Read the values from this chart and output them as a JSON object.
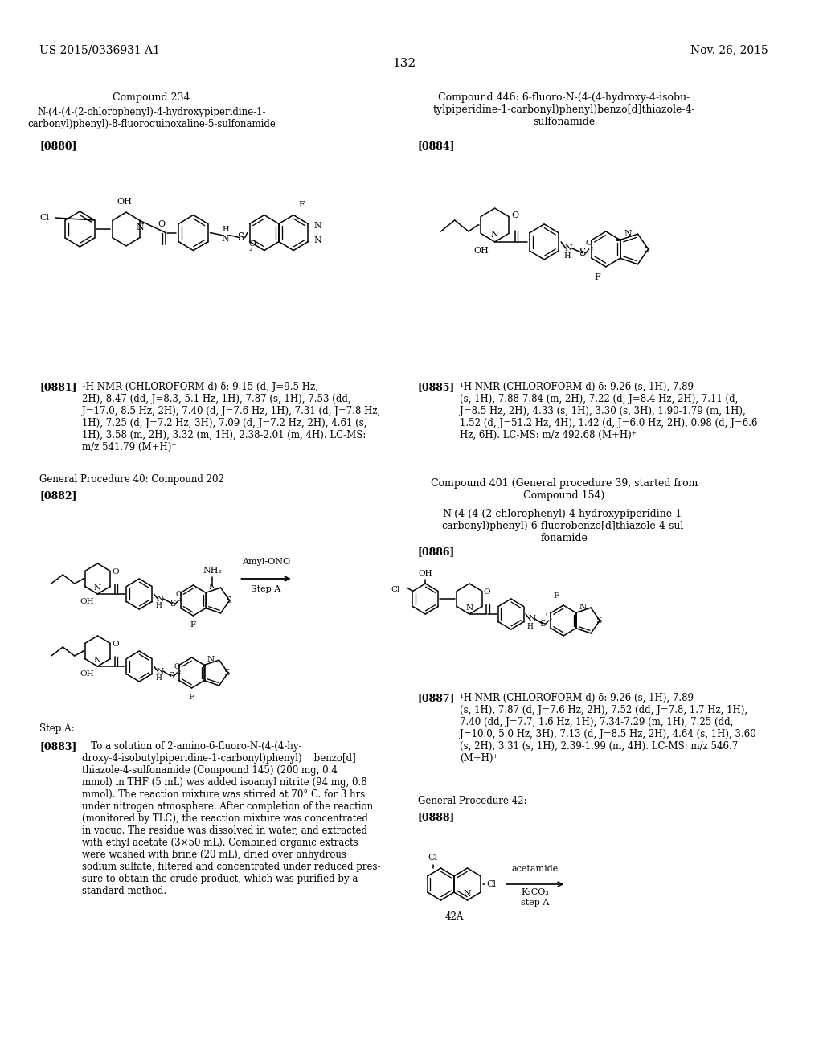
{
  "bg": "#ffffff",
  "header_left": "US 2015/0336931 A1",
  "header_right": "Nov. 26, 2015",
  "page_number": "132",
  "compound234_title": "Compound 234",
  "compound234_name": "N-(4-(4-(2-chlorophenyl)-4-hydroxypiperidine-1-\ncarbonyl)phenyl)-8-fluoroquinoxaline-5-sulfonamide",
  "ref0880": "[0880]",
  "compound446_title": "Compound 446: 6-fluoro-N-(4-(4-hydroxy-4-isobu-\ntylpiperidine-1-carbonyl)phenyl)benzo[d]thiazole-4-\nsulfonamide",
  "ref0884": "[0884]",
  "ref0881_bold": "[0881]",
  "nmr0881": "¹H NMR (CHLOROFORM-d) δ: 9.15 (d, J=9.5 Hz,\n2H), 8.47 (dd, J=8.3, 5.1 Hz, 1H), 7.87 (s, 1H), 7.53 (dd,\nJ=17.0, 8.5 Hz, 2H), 7.40 (d, J=7.6 Hz, 1H), 7.31 (d, J=7.8 Hz,\n1H), 7.25 (d, J=7.2 Hz, 3H), 7.09 (d, J=7.2 Hz, 2H), 4.61 (s,\n1H), 3.58 (m, 2H), 3.32 (m, 1H), 2.38-2.01 (m, 4H). LC-MS:\nm/z 541.79 (M+H)⁺",
  "gen_proc40": "General Procedure 40: Compound 202",
  "ref0882": "[0882]",
  "ref0885_bold": "[0885]",
  "nmr0885": "¹H NMR (CHLOROFORM-d) δ: 9.26 (s, 1H), 7.89\n(s, 1H), 7.88-7.84 (m, 2H), 7.22 (d, J=8.4 Hz, 2H), 7.11 (d,\nJ=8.5 Hz, 2H), 4.33 (s, 1H), 3.30 (s, 3H), 1.90-1.79 (m, 1H),\n1.52 (d, J=51.2 Hz, 4H), 1.42 (d, J=6.0 Hz, 2H), 0.98 (d, J=6.6\nHz, 6H). LC-MS: m/z 492.68 (M+H)⁺",
  "compound401_title": "Compound 401 (General procedure 39, started from\nCompound 154)",
  "compound401_name": "N-(4-(4-(2-chlorophenyl)-4-hydroxypiperidine-1-\ncarbonyl)phenyl)-6-fluorobenzo[d]thiazole-4-sul-\nfonamide",
  "ref0886": "[0886]",
  "step_a": "Step A:",
  "ref0883_bold": "[0883]",
  "text0883": "   To a solution of 2-amino-6-fluoro-N-(4-(4-hy-\ndroxy-4-isobutylpiperidine-1-carbonyl)phenyl)    benzo[d]\nthiazole-4-sulfonamide (Compound 145) (200 mg, 0.4\nmmol) in THF (5 mL) was added isoamyl nitrite (94 mg, 0.8\nmmol). The reaction mixture was stirred at 70° C. for 3 hrs\nunder nitrogen atmosphere. After completion of the reaction\n(monitored by TLC), the reaction mixture was concentrated\nin vacuo. The residue was dissolved in water, and extracted\nwith ethyl acetate (3×50 mL). Combined organic extracts\nwere washed with brine (20 mL), dried over anhydrous\nsodium sulfate, filtered and concentrated under reduced pres-\nsure to obtain the crude product, which was purified by a\nstandard method.",
  "ref0887_bold": "[0887]",
  "nmr0887": "¹H NMR (CHLOROFORM-d) δ: 9.26 (s, 1H), 7.89\n(s, 1H), 7.87 (d, J=7.6 Hz, 2H), 7.52 (dd, J=7.8, 1.7 Hz, 1H),\n7.40 (dd, J=7.7, 1.6 Hz, 1H), 7.34-7.29 (m, 1H), 7.25 (dd,\nJ=10.0, 5.0 Hz, 3H), 7.13 (d, J=8.5 Hz, 2H), 4.64 (s, 1H), 3.60\n(s, 2H), 3.31 (s, 1H), 2.39-1.99 (m, 4H). LC-MS: m/z 546.7\n(M+H)⁺",
  "gen_proc42": "General Procedure 42:",
  "ref0888": "[0888]",
  "arrow_label_top": "Amyl-ONO",
  "arrow_label_bot": "Step A",
  "label_42A": "42A",
  "label_acetamide": "acetamide",
  "label_K2CO3": "K₂CO₃",
  "label_stepA": "step A"
}
